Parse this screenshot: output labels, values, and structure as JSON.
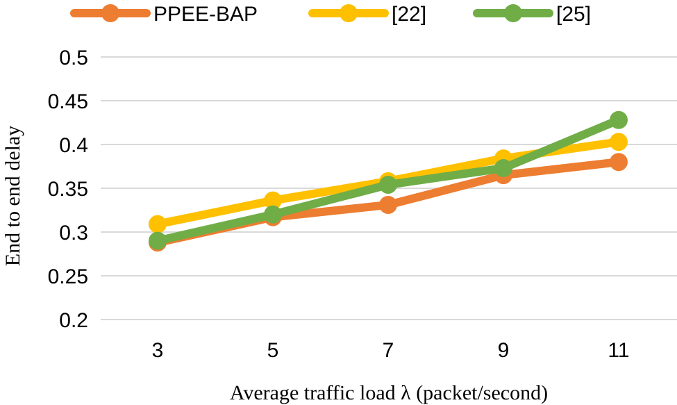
{
  "chart_data": {
    "type": "line",
    "title": "",
    "xlabel": "Average traffic load λ (packet/second)",
    "ylabel": "End to end delay",
    "categories": [
      "3",
      "5",
      "7",
      "9",
      "11"
    ],
    "ylim": [
      0.2,
      0.5
    ],
    "yticks": [
      "0.2",
      "0.25",
      "0.3",
      "0.35",
      "0.4",
      "0.45",
      "0.5"
    ],
    "grid": true,
    "legend_position": "top",
    "series": [
      {
        "name": "PPEE-BAP",
        "color": "#ED7D31",
        "values": [
          0.288,
          0.317,
          0.331,
          0.365,
          0.38
        ]
      },
      {
        "name": "[22]",
        "color": "#FFC000",
        "values": [
          0.309,
          0.336,
          0.358,
          0.384,
          0.403
        ]
      },
      {
        "name": "[25]",
        "color": "#70AD47",
        "values": [
          0.29,
          0.32,
          0.354,
          0.373,
          0.428
        ]
      }
    ]
  }
}
